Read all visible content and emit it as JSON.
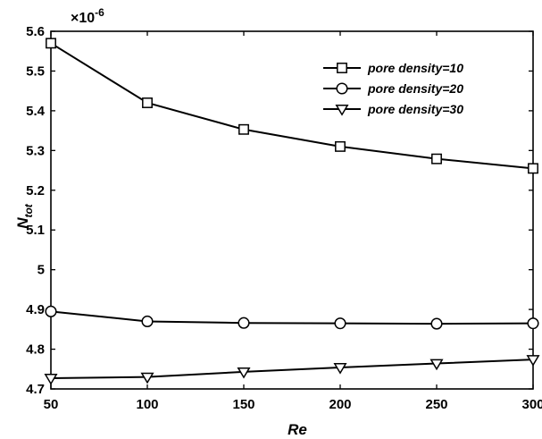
{
  "chart_data": {
    "type": "line",
    "x": [
      50,
      100,
      150,
      200,
      250,
      300
    ],
    "series": [
      {
        "name": "pore density=10",
        "marker": "square",
        "values": [
          5.57,
          5.42,
          5.353,
          5.31,
          5.279,
          5.255
        ]
      },
      {
        "name": "pore density=20",
        "marker": "circle",
        "values": [
          4.895,
          4.87,
          4.866,
          4.865,
          4.864,
          4.865
        ]
      },
      {
        "name": "pore density=30",
        "marker": "triangle-down",
        "values": [
          4.727,
          4.73,
          4.743,
          4.754,
          4.764,
          4.774
        ]
      }
    ],
    "xlabel": "Re",
    "ylabel_main": "N",
    "ylabel_sub": "tot",
    "exponent": {
      "base": "×10",
      "power": "-6"
    },
    "xlim": [
      50,
      300
    ],
    "ylim": [
      4.7,
      5.6
    ],
    "xticks": [
      "50",
      "100",
      "150",
      "200",
      "250",
      "300"
    ],
    "yticks": [
      "4.7",
      "4.8",
      "4.9",
      "5",
      "5.1",
      "5.2",
      "5.3",
      "5.4",
      "5.5",
      "5.6"
    ],
    "grid": false,
    "legend_position": "top-right",
    "line_color": "#000000"
  }
}
